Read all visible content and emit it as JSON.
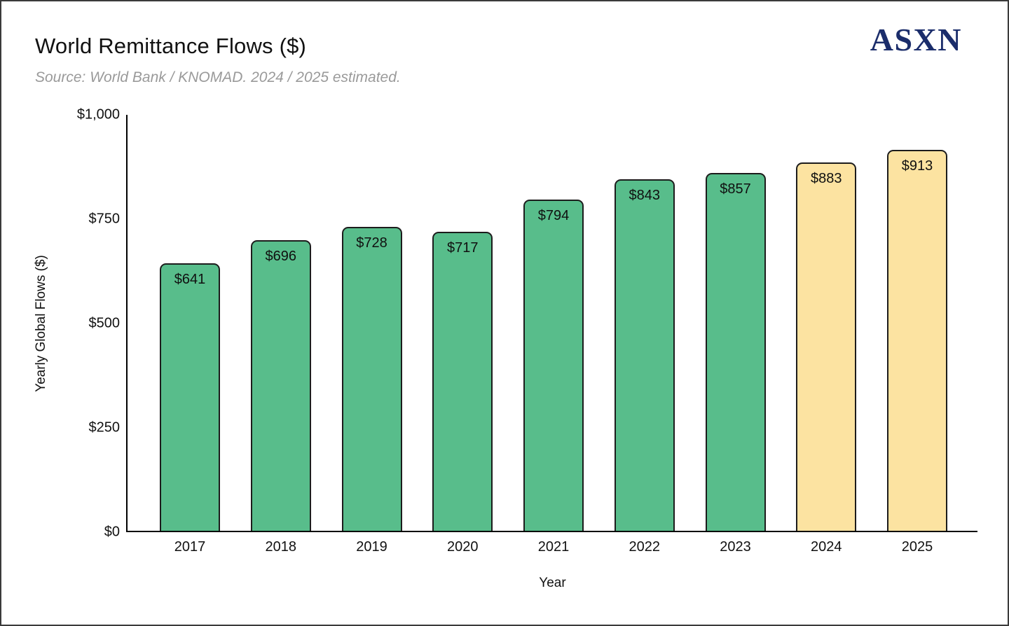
{
  "header": {
    "title": "World Remittance Flows ($)",
    "source_note": "Source: World Bank / KNOMAD. 2024 / 2025 estimated.",
    "logo_text": "ASXN"
  },
  "colors": {
    "bar_actual": "#58bd8b",
    "bar_estimated": "#fce3a1",
    "bar_border": "#1c1c1c",
    "axis": "#000000",
    "logo": "#1b2d6b",
    "subtitle_text": "#9a9a9a",
    "title_text": "#111111"
  },
  "chart_data": {
    "type": "bar",
    "title": "World Remittance Flows ($)",
    "subtitle": "Source: World Bank / KNOMAD. 2024 / 2025 estimated.",
    "categories": [
      "2017",
      "2018",
      "2019",
      "2020",
      "2021",
      "2022",
      "2023",
      "2024",
      "2025"
    ],
    "values": [
      641,
      696,
      728,
      717,
      794,
      843,
      857,
      883,
      913
    ],
    "bar_labels": [
      "$641",
      "$696",
      "$728",
      "$717",
      "$794",
      "$843",
      "$857",
      "$883",
      "$913"
    ],
    "estimated": [
      false,
      false,
      false,
      false,
      false,
      false,
      false,
      true,
      true
    ],
    "xlabel": "Year",
    "ylabel": "Yearly Global Flows ($)",
    "ylim": [
      0,
      1000
    ],
    "yticks": [
      0,
      250,
      500,
      750,
      1000
    ],
    "ytick_labels": [
      "$0",
      "$250",
      "$500",
      "$750",
      "$1,000"
    ],
    "grid": false,
    "legend_position": "none"
  }
}
